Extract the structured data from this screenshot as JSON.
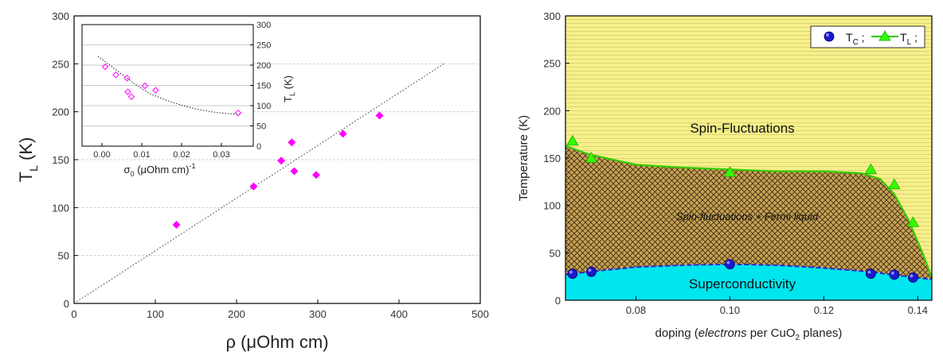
{
  "chart_data": [
    {
      "type": "scatter",
      "xlabel": "ρ (μOhm cm)",
      "ylabel": "T",
      "ylabel_sub": "L",
      "ylabel_unit": "(K)",
      "xlim": [
        0,
        500
      ],
      "ylim": [
        0,
        300
      ],
      "xticks": [
        0,
        100,
        200,
        300,
        400,
        500
      ],
      "yticks": [
        0,
        50,
        100,
        150,
        200,
        250,
        300
      ],
      "marker_color": "#ff00ff",
      "points": [
        {
          "x": 126,
          "y": 82
        },
        {
          "x": 221,
          "y": 122
        },
        {
          "x": 255,
          "y": 149
        },
        {
          "x": 268,
          "y": 168
        },
        {
          "x": 271,
          "y": 138
        },
        {
          "x": 298,
          "y": 134
        },
        {
          "x": 331,
          "y": 177
        },
        {
          "x": 376,
          "y": 196
        }
      ],
      "fit_line": {
        "x0": 0,
        "y0": 0,
        "x1": 455,
        "y1": 250
      },
      "grid_y": [
        50,
        100,
        150,
        200,
        250
      ],
      "inset": {
        "type": "scatter",
        "xlabel": "σ",
        "xlabel_sub": "0",
        "xlabel_unit": "(μOhm cm)",
        "xlabel_sup": "-1",
        "ylabel": "T",
        "ylabel_sub": "L",
        "ylabel_unit": "(K)",
        "xlim": [
          -0.005,
          0.038
        ],
        "ylim": [
          0,
          300
        ],
        "xticks": [
          "0.00",
          "0.01",
          "0.02",
          "0.03"
        ],
        "xtick_values": [
          0,
          0.01,
          0.02,
          0.03
        ],
        "yticks": [
          0,
          50,
          100,
          150,
          200,
          250,
          300
        ],
        "points": [
          {
            "x": 0.0008,
            "y": 196
          },
          {
            "x": 0.0035,
            "y": 176
          },
          {
            "x": 0.0063,
            "y": 168
          },
          {
            "x": 0.0065,
            "y": 134
          },
          {
            "x": 0.0074,
            "y": 122
          },
          {
            "x": 0.0108,
            "y": 149
          },
          {
            "x": 0.0135,
            "y": 138
          },
          {
            "x": 0.0342,
            "y": 82
          }
        ],
        "fit_curve": [
          {
            "x": -0.001,
            "y": 222
          },
          {
            "x": 0.004,
            "y": 185
          },
          {
            "x": 0.008,
            "y": 155
          },
          {
            "x": 0.012,
            "y": 130
          },
          {
            "x": 0.016,
            "y": 114
          },
          {
            "x": 0.02,
            "y": 101
          },
          {
            "x": 0.024,
            "y": 91
          },
          {
            "x": 0.028,
            "y": 84
          },
          {
            "x": 0.032,
            "y": 80
          },
          {
            "x": 0.035,
            "y": 79
          }
        ]
      }
    },
    {
      "type": "phase-diagram",
      "xlabel_pre": "doping (",
      "xlabel_italic": "electrons",
      "xlabel_mid": " per CuO",
      "xlabel_sub": "2",
      "xlabel_post": " planes)",
      "ylabel": "Temperature (K)",
      "xlim": [
        0.065,
        0.143
      ],
      "ylim": [
        0,
        300
      ],
      "xticks": [
        "0.08",
        "0.10",
        "0.12",
        "0.14"
      ],
      "xtick_values": [
        0.08,
        0.1,
        0.12,
        0.14
      ],
      "yticks": [
        0,
        50,
        100,
        150,
        200,
        250,
        300
      ],
      "regions": {
        "top": "Spin-Fluctuations",
        "middle": "Spin-fluctuations + Fermi liquid",
        "bottom": "Superconductivity"
      },
      "colors": {
        "top_fill": "#f7f08a",
        "middle_fill": "#c8a254",
        "bottom_fill": "#00e5ee",
        "tl_line": "#33cc00",
        "tl_marker": "#33ff00",
        "tc_marker": "#1a1acc"
      },
      "legend": {
        "tc_label": "T",
        "tc_sub": "C",
        "tc_sep": ";",
        "tl_label": "T",
        "tl_sub": "L",
        "tl_sep": ";",
        "placement": "top-right"
      },
      "tc_points": [
        {
          "x": 0.0665,
          "y": 28
        },
        {
          "x": 0.0705,
          "y": 30
        },
        {
          "x": 0.1,
          "y": 38
        },
        {
          "x": 0.13,
          "y": 28
        },
        {
          "x": 0.135,
          "y": 27
        },
        {
          "x": 0.139,
          "y": 24
        }
      ],
      "tl_points": [
        {
          "x": 0.0665,
          "y": 168
        },
        {
          "x": 0.0705,
          "y": 150
        },
        {
          "x": 0.1,
          "y": 135
        },
        {
          "x": 0.13,
          "y": 138
        },
        {
          "x": 0.135,
          "y": 122
        },
        {
          "x": 0.139,
          "y": 82
        }
      ],
      "tl_curve": [
        {
          "x": 0.065,
          "y": 163
        },
        {
          "x": 0.07,
          "y": 154
        },
        {
          "x": 0.08,
          "y": 143
        },
        {
          "x": 0.09,
          "y": 140
        },
        {
          "x": 0.1,
          "y": 138
        },
        {
          "x": 0.11,
          "y": 136
        },
        {
          "x": 0.12,
          "y": 136
        },
        {
          "x": 0.128,
          "y": 134
        },
        {
          "x": 0.132,
          "y": 128
        },
        {
          "x": 0.135,
          "y": 112
        },
        {
          "x": 0.138,
          "y": 85
        },
        {
          "x": 0.141,
          "y": 50
        },
        {
          "x": 0.143,
          "y": 24
        }
      ],
      "tc_curve": [
        {
          "x": 0.065,
          "y": 27
        },
        {
          "x": 0.07,
          "y": 30
        },
        {
          "x": 0.08,
          "y": 35
        },
        {
          "x": 0.09,
          "y": 37
        },
        {
          "x": 0.1,
          "y": 38
        },
        {
          "x": 0.11,
          "y": 37
        },
        {
          "x": 0.12,
          "y": 34
        },
        {
          "x": 0.13,
          "y": 30
        },
        {
          "x": 0.136,
          "y": 26
        },
        {
          "x": 0.143,
          "y": 22
        }
      ]
    }
  ]
}
